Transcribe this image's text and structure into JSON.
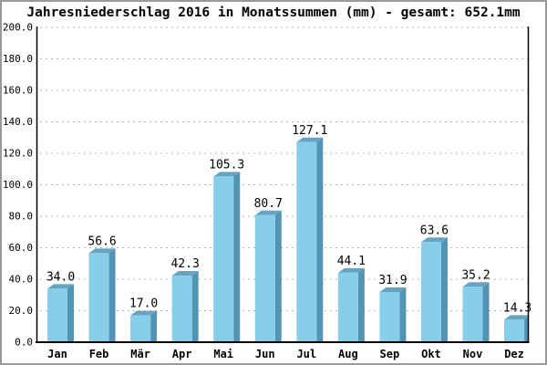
{
  "window": {
    "border_color": "#999999",
    "background": "#ffffff"
  },
  "chart_data": {
    "type": "bar",
    "bar_style": "3d",
    "title": "Jahresniederschlag 2016 in Monatssummen (mm) - gesamt: 652.1mm",
    "xlabel": "",
    "ylabel": "",
    "categories": [
      "Jan",
      "Feb",
      "Mär",
      "Apr",
      "Mai",
      "Jun",
      "Jul",
      "Aug",
      "Sep",
      "Okt",
      "Nov",
      "Dez"
    ],
    "values": [
      34.0,
      56.6,
      17.0,
      42.3,
      105.3,
      80.7,
      127.1,
      44.1,
      31.9,
      63.6,
      35.2,
      14.3
    ],
    "value_labels": [
      "34.0",
      "56.6",
      "17.0",
      "42.3",
      "105.3",
      "80.7",
      "127.1",
      "44.1",
      "31.9",
      "63.6",
      "35.2",
      "14.3"
    ],
    "total": 652.1,
    "unit": "mm",
    "ylim": [
      0,
      200
    ],
    "ytick_step": 20,
    "ytick_labels": [
      "0.0",
      "20.0",
      "40.0",
      "60.0",
      "80.0",
      "100.0",
      "120.0",
      "140.0",
      "160.0",
      "180.0",
      "200.0"
    ],
    "grid": "horizontal-dotted",
    "legend": "none",
    "colors": {
      "bar_front": "#87CEEA",
      "bar_side": "#5393B5",
      "bar_top": "#66A3C1",
      "grid": "#b3b3b3",
      "axis": "#000000",
      "text": "#000000"
    }
  }
}
